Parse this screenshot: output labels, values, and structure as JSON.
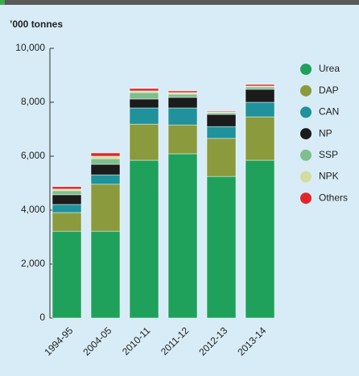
{
  "chart_data": {
    "type": "stacked_bar",
    "ylabel": "’000 tonnes",
    "categories": [
      "1994-95",
      "2004-05",
      "2010-11",
      "2011-12",
      "2012-13",
      "2013-14"
    ],
    "series": [
      {
        "name": "Urea",
        "color": "#1fa15c",
        "values": [
          3220,
          3220,
          5850,
          6090,
          5250,
          5850
        ]
      },
      {
        "name": "DAP",
        "color": "#8a9a3d",
        "values": [
          690,
          1740,
          1340,
          1070,
          1410,
          1610
        ]
      },
      {
        "name": "CAN",
        "color": "#1f929c",
        "values": [
          300,
          350,
          600,
          630,
          440,
          540
        ]
      },
      {
        "name": "NP",
        "color": "#1b1b1b",
        "values": [
          360,
          390,
          330,
          390,
          450,
          480
        ]
      },
      {
        "name": "SSP",
        "color": "#7dbf8f",
        "values": [
          150,
          210,
          240,
          120,
          60,
          90
        ]
      },
      {
        "name": "NPK",
        "color": "#d4dc9e",
        "values": [
          60,
          90,
          60,
          60,
          30,
          30
        ]
      },
      {
        "name": "Others",
        "color": "#e0262a",
        "values": [
          90,
          120,
          90,
          60,
          30,
          60
        ]
      }
    ],
    "ylim": [
      0,
      10000
    ],
    "yticks": [
      0,
      {
        "value": 2000,
        "label": "2,000"
      },
      {
        "value": 4000,
        "label": "4,000"
      },
      {
        "value": 6000,
        "label": "6,000"
      },
      {
        "value": 8000,
        "label": "8,000"
      },
      {
        "value": 10000,
        "label": "10,000"
      }
    ],
    "legend": "right"
  }
}
